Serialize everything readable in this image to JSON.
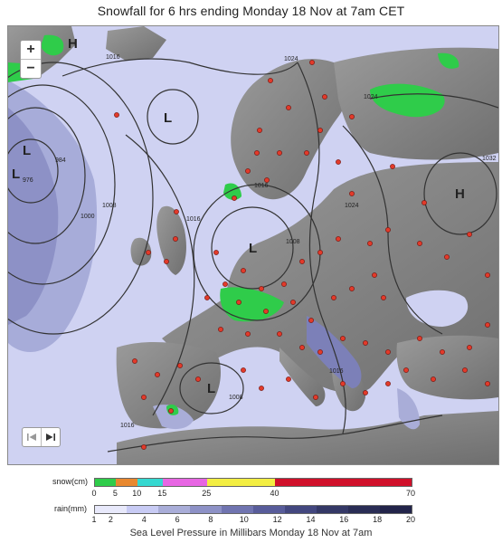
{
  "title": "Snowfall for 6 hrs ending Monday 18 Nov at 7am CET",
  "caption": "Sea Level Pressure in Millibars Monday 18 Nov at 7am",
  "controls": {
    "zoom_in": "+",
    "zoom_out": "−",
    "prev_icon": "skip-back-icon",
    "play_icon": "play-forward-icon"
  },
  "map": {
    "pressure_labels": [
      "1016",
      "1024",
      "1024",
      "1032",
      "984",
      "976",
      "1000",
      "1008",
      "1016",
      "1016",
      "1008",
      "1024",
      "1016",
      "1016",
      "1008"
    ],
    "highs_lows": [
      "H",
      "L",
      "L",
      "L",
      "H",
      "L",
      "L"
    ]
  },
  "legend": {
    "snow_label": "snow(cm)",
    "rain_label": "rain(mm)",
    "snow_ticks": [
      "0",
      "5",
      "10",
      "15",
      "25",
      "40",
      "70"
    ],
    "rain_ticks": [
      "1",
      "2",
      "4",
      "6",
      "8",
      "10",
      "12",
      "14",
      "16",
      "18",
      "20"
    ],
    "snow_colors": [
      "#2fcc4a",
      "#e8882f",
      "#35d8d0",
      "#e766e3",
      "#f3ee42",
      "#d0102a"
    ],
    "rain_colors": [
      "#e8e9fb",
      "#c8cbf4",
      "#a9add8",
      "#8d91c6",
      "#7074b0",
      "#585c9a",
      "#43477f",
      "#343866",
      "#2a2d55",
      "#22244a"
    ]
  }
}
